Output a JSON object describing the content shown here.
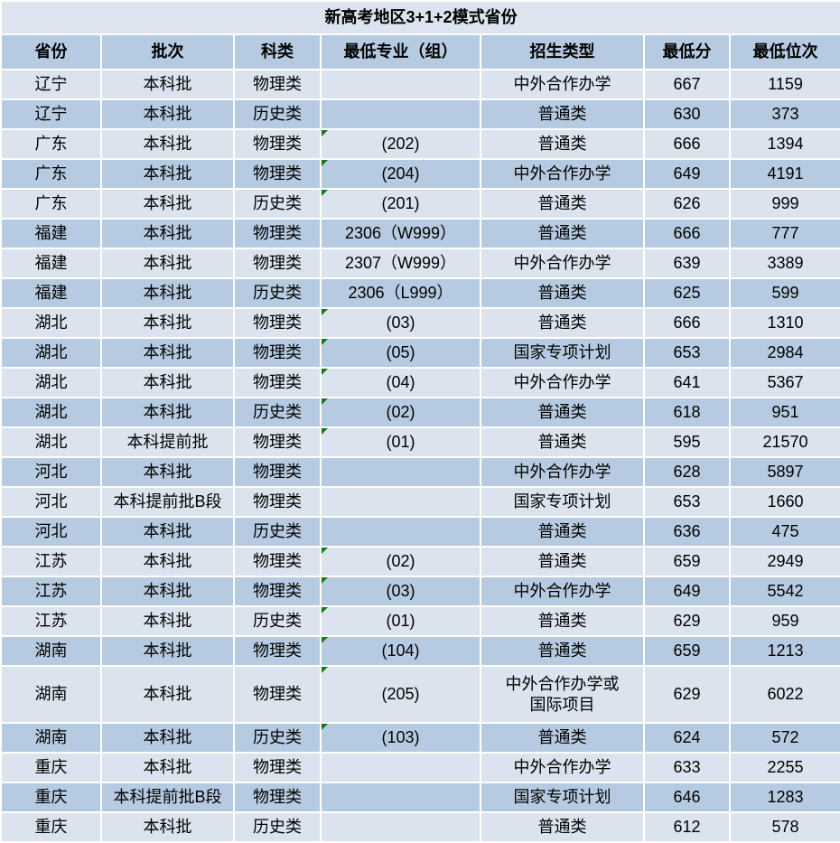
{
  "table": {
    "title": "新高考地区3+1+2模式省份",
    "columns": [
      {
        "key": "province",
        "label": "省份"
      },
      {
        "key": "batch",
        "label": "批次"
      },
      {
        "key": "subject",
        "label": "科类"
      },
      {
        "key": "major_group",
        "label": "最低专业（组）"
      },
      {
        "key": "admission_type",
        "label": "招生类型"
      },
      {
        "key": "min_score",
        "label": "最低分"
      },
      {
        "key": "min_rank",
        "label": "最低位次"
      }
    ],
    "rows": [
      {
        "province": "辽宁",
        "batch": "本科批",
        "subject": "物理类",
        "major_group": "",
        "admission_type": "中外合作办学",
        "min_score": "667",
        "min_rank": "1159",
        "error_flag": false,
        "tall": false
      },
      {
        "province": "辽宁",
        "batch": "本科批",
        "subject": "历史类",
        "major_group": "",
        "admission_type": "普通类",
        "min_score": "630",
        "min_rank": "373",
        "error_flag": false,
        "tall": false
      },
      {
        "province": "广东",
        "batch": "本科批",
        "subject": "物理类",
        "major_group": "(202)",
        "admission_type": "普通类",
        "min_score": "666",
        "min_rank": "1394",
        "error_flag": true,
        "tall": false
      },
      {
        "province": "广东",
        "batch": "本科批",
        "subject": "物理类",
        "major_group": "(204)",
        "admission_type": "中外合作办学",
        "min_score": "649",
        "min_rank": "4191",
        "error_flag": true,
        "tall": false
      },
      {
        "province": "广东",
        "batch": "本科批",
        "subject": "历史类",
        "major_group": "(201)",
        "admission_type": "普通类",
        "min_score": "626",
        "min_rank": "999",
        "error_flag": true,
        "tall": false
      },
      {
        "province": "福建",
        "batch": "本科批",
        "subject": "物理类",
        "major_group": "2306（W999）",
        "admission_type": "普通类",
        "min_score": "666",
        "min_rank": "777",
        "error_flag": false,
        "tall": false
      },
      {
        "province": "福建",
        "batch": "本科批",
        "subject": "物理类",
        "major_group": "2307（W999）",
        "admission_type": "中外合作办学",
        "min_score": "639",
        "min_rank": "3389",
        "error_flag": false,
        "tall": false
      },
      {
        "province": "福建",
        "batch": "本科批",
        "subject": "历史类",
        "major_group": "2306（L999）",
        "admission_type": "普通类",
        "min_score": "625",
        "min_rank": "599",
        "error_flag": false,
        "tall": false
      },
      {
        "province": "湖北",
        "batch": "本科批",
        "subject": "物理类",
        "major_group": "(03)",
        "admission_type": "普通类",
        "min_score": "666",
        "min_rank": "1310",
        "error_flag": true,
        "tall": false
      },
      {
        "province": "湖北",
        "batch": "本科批",
        "subject": "物理类",
        "major_group": "(05)",
        "admission_type": "国家专项计划",
        "min_score": "653",
        "min_rank": "2984",
        "error_flag": true,
        "tall": false
      },
      {
        "province": "湖北",
        "batch": "本科批",
        "subject": "物理类",
        "major_group": "(04)",
        "admission_type": "中外合作办学",
        "min_score": "641",
        "min_rank": "5367",
        "error_flag": true,
        "tall": false
      },
      {
        "province": "湖北",
        "batch": "本科批",
        "subject": "历史类",
        "major_group": "(02)",
        "admission_type": "普通类",
        "min_score": "618",
        "min_rank": "951",
        "error_flag": true,
        "tall": false
      },
      {
        "province": "湖北",
        "batch": "本科提前批",
        "subject": "物理类",
        "major_group": "(01)",
        "admission_type": "普通类",
        "min_score": "595",
        "min_rank": "21570",
        "error_flag": true,
        "tall": false
      },
      {
        "province": "河北",
        "batch": "本科批",
        "subject": "物理类",
        "major_group": "",
        "admission_type": "中外合作办学",
        "min_score": "628",
        "min_rank": "5897",
        "error_flag": false,
        "tall": false
      },
      {
        "province": "河北",
        "batch": "本科提前批B段",
        "subject": "物理类",
        "major_group": "",
        "admission_type": "国家专项计划",
        "min_score": "653",
        "min_rank": "1660",
        "error_flag": false,
        "tall": false
      },
      {
        "province": "河北",
        "batch": "本科批",
        "subject": "历史类",
        "major_group": "",
        "admission_type": "普通类",
        "min_score": "636",
        "min_rank": "475",
        "error_flag": false,
        "tall": false
      },
      {
        "province": "江苏",
        "batch": "本科批",
        "subject": "物理类",
        "major_group": "(02)",
        "admission_type": "普通类",
        "min_score": "659",
        "min_rank": "2949",
        "error_flag": true,
        "tall": false
      },
      {
        "province": "江苏",
        "batch": "本科批",
        "subject": "物理类",
        "major_group": "(03)",
        "admission_type": "中外合作办学",
        "min_score": "649",
        "min_rank": "5542",
        "error_flag": true,
        "tall": false
      },
      {
        "province": "江苏",
        "batch": "本科批",
        "subject": "历史类",
        "major_group": "(01)",
        "admission_type": "普通类",
        "min_score": "629",
        "min_rank": "959",
        "error_flag": true,
        "tall": false
      },
      {
        "province": "湖南",
        "batch": "本科批",
        "subject": "物理类",
        "major_group": "(104)",
        "admission_type": "普通类",
        "min_score": "659",
        "min_rank": "1213",
        "error_flag": true,
        "tall": false
      },
      {
        "province": "湖南",
        "batch": "本科批",
        "subject": "物理类",
        "major_group": "(205)",
        "admission_type": "中外合作办学或\n国际项目",
        "min_score": "629",
        "min_rank": "6022",
        "error_flag": true,
        "tall": true
      },
      {
        "province": "湖南",
        "batch": "本科批",
        "subject": "历史类",
        "major_group": "(103)",
        "admission_type": "普通类",
        "min_score": "624",
        "min_rank": "572",
        "error_flag": true,
        "tall": false
      },
      {
        "province": "重庆",
        "batch": "本科批",
        "subject": "物理类",
        "major_group": "",
        "admission_type": "中外合作办学",
        "min_score": "633",
        "min_rank": "2255",
        "error_flag": false,
        "tall": false
      },
      {
        "province": "重庆",
        "batch": "本科提前批B段",
        "subject": "物理类",
        "major_group": "",
        "admission_type": "国家专项计划",
        "min_score": "646",
        "min_rank": "1283",
        "error_flag": false,
        "tall": false
      },
      {
        "province": "重庆",
        "batch": "本科批",
        "subject": "历史类",
        "major_group": "",
        "admission_type": "普通类",
        "min_score": "612",
        "min_rank": "578",
        "error_flag": false,
        "tall": false
      }
    ]
  },
  "colors": {
    "title_bg": "#dce5ef",
    "header_bg": "#b6cbe1",
    "band_light": "#dae3ee",
    "band_dark": "#b6cbe1",
    "gridline": "#ffffff",
    "text": "#000000",
    "error_indicator": "#107c10"
  }
}
